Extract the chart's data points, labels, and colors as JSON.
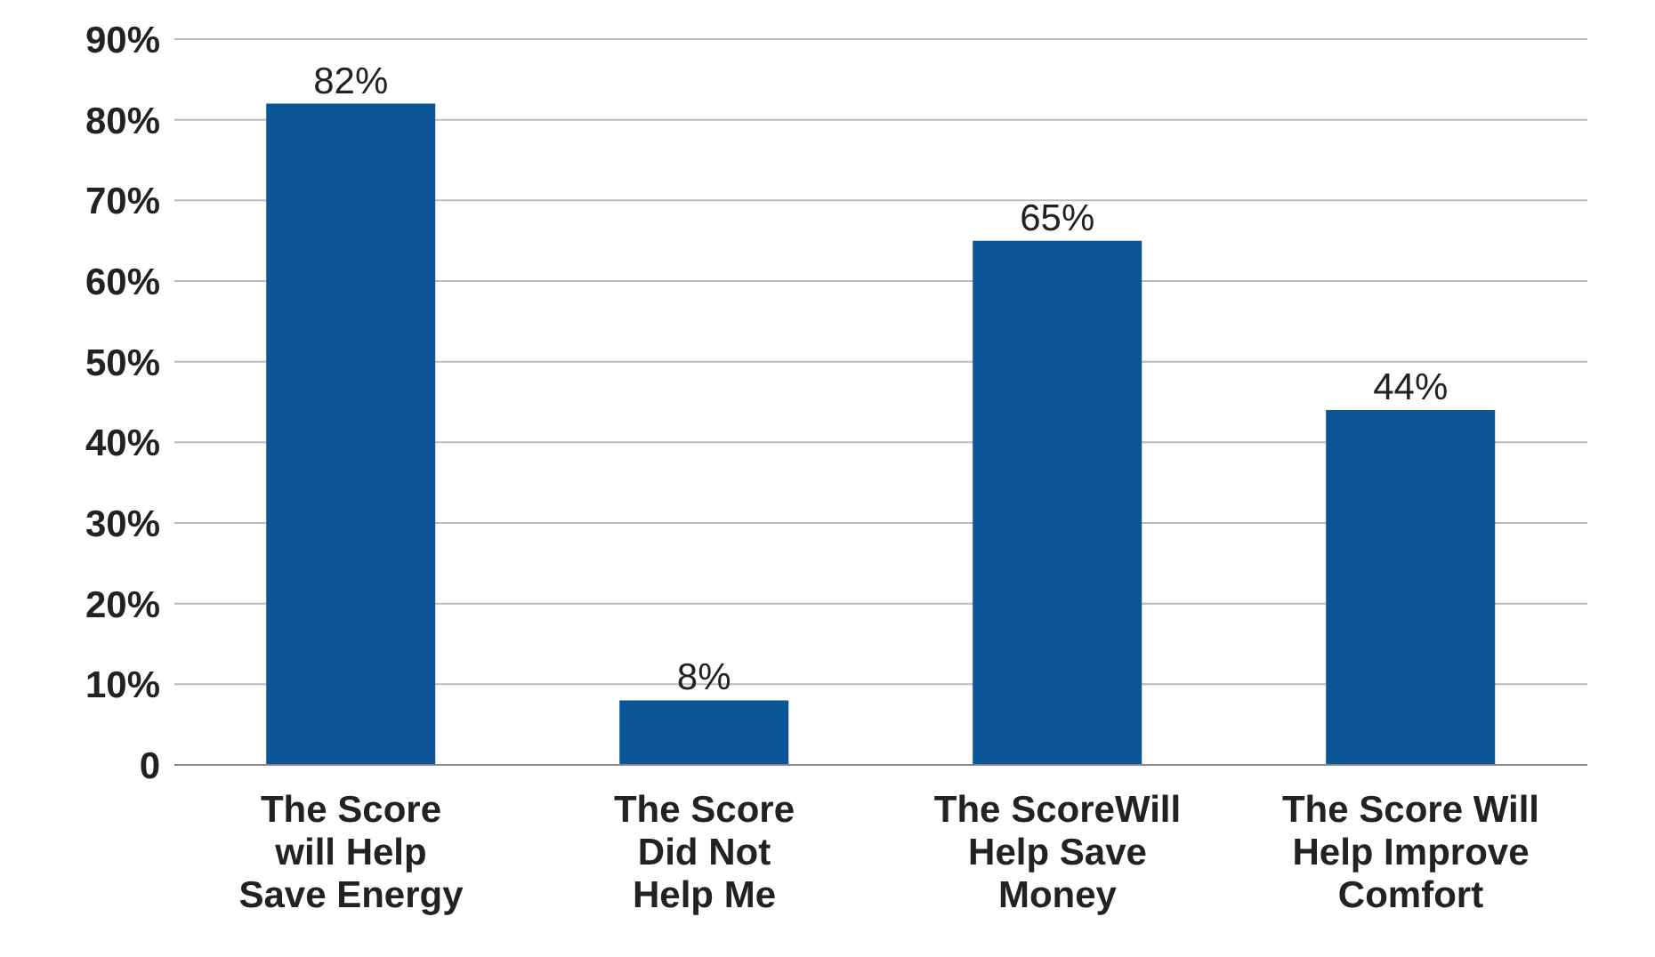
{
  "chart_data": {
    "type": "bar",
    "categories": [
      "The Score\nwill Help\nSave Energy",
      "The Score\nDid Not\nHelp Me",
      "The ScoreWill\nHelp Save\nMoney",
      "The Score Will\nHelp Improve\nComfort"
    ],
    "values": [
      82,
      8,
      65,
      44
    ],
    "value_labels": [
      "82%",
      "8%",
      "65%",
      "44%"
    ],
    "color": "#0a5596",
    "ylim": [
      0,
      90
    ],
    "yticks": [
      {
        "value": 0,
        "label": "0"
      },
      {
        "value": 10,
        "label": "10%"
      },
      {
        "value": 20,
        "label": "20%"
      },
      {
        "value": 30,
        "label": "30%"
      },
      {
        "value": 40,
        "label": "40%"
      },
      {
        "value": 50,
        "label": "50%"
      },
      {
        "value": 60,
        "label": "60%"
      },
      {
        "value": 70,
        "label": "70%"
      },
      {
        "value": 80,
        "label": "80%"
      },
      {
        "value": 90,
        "label": "90%"
      }
    ],
    "grid": "y"
  }
}
